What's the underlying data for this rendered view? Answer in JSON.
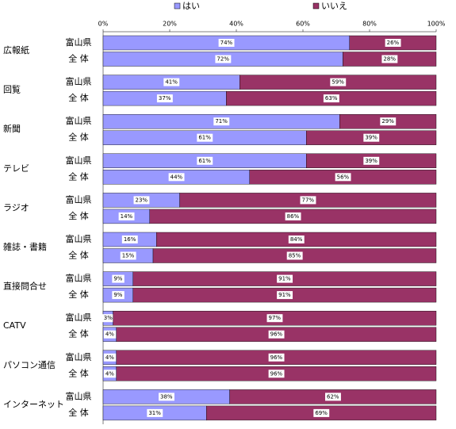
{
  "chart_data": {
    "type": "stacked-bar-horizontal-100",
    "groups": [
      "広報紙",
      "回覧",
      "新聞",
      "テレビ",
      "ラジオ",
      "雑誌・書籍",
      "直接問合せ",
      "CATV",
      "パソコン通信",
      "インターネット"
    ],
    "categories": [
      "富山県",
      "全 体",
      "富山県",
      "全 体",
      "富山県",
      "全 体",
      "富山県",
      "全 体",
      "富山県",
      "全 体",
      "富山県",
      "全 体",
      "富山県",
      "全 体",
      "富山県",
      "全 体",
      "富山県",
      "全 体",
      "富山県",
      "全 体"
    ],
    "series": [
      {
        "name": "はい",
        "color": "#9999ff",
        "values": [
          74,
          72,
          41,
          37,
          71,
          61,
          61,
          44,
          23,
          14,
          16,
          15,
          9,
          9,
          3,
          4,
          4,
          4,
          38,
          31
        ],
        "value_labels": [
          "74%",
          "72%",
          "41%",
          "37%",
          "71%",
          "61%",
          "61%",
          "44%",
          "23%",
          "14%",
          "16%",
          "15%",
          "9%",
          "9%",
          "3%",
          "4%",
          "4%",
          "4%",
          "38%",
          "31%"
        ]
      },
      {
        "name": "いいえ",
        "color": "#993366",
        "values": [
          26,
          28,
          59,
          63,
          29,
          39,
          39,
          56,
          77,
          86,
          84,
          85,
          91,
          91,
          97,
          96,
          96,
          96,
          62,
          69
        ],
        "value_labels": [
          "26%",
          "28%",
          "59%",
          "63%",
          "29%",
          "39%",
          "39%",
          "56%",
          "77%",
          "86%",
          "84%",
          "85%",
          "91%",
          "91%",
          "97%",
          "96%",
          "96%",
          "96%",
          "62%",
          "69%"
        ]
      }
    ],
    "xlim": [
      0,
      100
    ],
    "xticks": [
      {
        "value": 0,
        "label": "0%"
      },
      {
        "value": 20,
        "label": "20%"
      },
      {
        "value": 40,
        "label": "40%"
      },
      {
        "value": 60,
        "label": "60%"
      },
      {
        "value": 80,
        "label": "80%"
      },
      {
        "value": 100,
        "label": "100%"
      }
    ],
    "legend": "top"
  }
}
